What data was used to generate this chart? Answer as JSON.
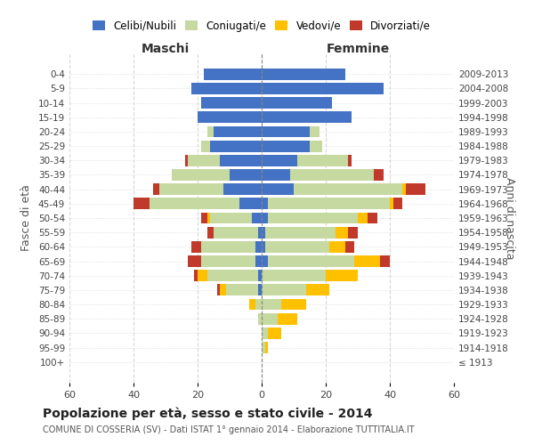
{
  "age_groups": [
    "100+",
    "95-99",
    "90-94",
    "85-89",
    "80-84",
    "75-79",
    "70-74",
    "65-69",
    "60-64",
    "55-59",
    "50-54",
    "45-49",
    "40-44",
    "35-39",
    "30-34",
    "25-29",
    "20-24",
    "15-19",
    "10-14",
    "5-9",
    "0-4"
  ],
  "birth_years": [
    "≤ 1913",
    "1914-1918",
    "1919-1923",
    "1924-1928",
    "1929-1933",
    "1934-1938",
    "1939-1943",
    "1944-1948",
    "1949-1953",
    "1954-1958",
    "1959-1963",
    "1964-1968",
    "1969-1973",
    "1974-1978",
    "1979-1983",
    "1984-1988",
    "1989-1993",
    "1994-1998",
    "1999-2003",
    "2004-2008",
    "2009-2013"
  ],
  "male": {
    "celibi": [
      0,
      0,
      0,
      0,
      0,
      1,
      1,
      2,
      2,
      1,
      3,
      7,
      12,
      10,
      13,
      16,
      15,
      20,
      19,
      22,
      18
    ],
    "coniugati": [
      0,
      0,
      0,
      1,
      2,
      10,
      16,
      17,
      17,
      14,
      13,
      28,
      20,
      18,
      10,
      3,
      2,
      0,
      0,
      0,
      0
    ],
    "vedovi": [
      0,
      0,
      0,
      0,
      2,
      2,
      3,
      0,
      0,
      0,
      1,
      0,
      0,
      0,
      0,
      0,
      0,
      0,
      0,
      0,
      0
    ],
    "divorziati": [
      0,
      0,
      0,
      0,
      0,
      1,
      1,
      4,
      3,
      2,
      2,
      5,
      2,
      0,
      1,
      0,
      0,
      0,
      0,
      0,
      0
    ]
  },
  "female": {
    "nubili": [
      0,
      0,
      0,
      0,
      0,
      0,
      0,
      2,
      1,
      1,
      2,
      2,
      10,
      9,
      11,
      15,
      15,
      28,
      22,
      38,
      26
    ],
    "coniugate": [
      0,
      1,
      2,
      5,
      6,
      14,
      20,
      27,
      20,
      22,
      28,
      38,
      34,
      26,
      16,
      4,
      3,
      0,
      0,
      0,
      0
    ],
    "vedove": [
      0,
      1,
      4,
      6,
      8,
      7,
      10,
      8,
      5,
      4,
      3,
      1,
      1,
      0,
      0,
      0,
      0,
      0,
      0,
      0,
      0
    ],
    "divorziate": [
      0,
      0,
      0,
      0,
      0,
      0,
      0,
      3,
      3,
      3,
      3,
      3,
      6,
      3,
      1,
      0,
      0,
      0,
      0,
      0,
      0
    ]
  },
  "colors": {
    "celibi": "#4472c4",
    "coniugati": "#c5d9a0",
    "vedovi": "#ffc000",
    "divorziati": "#c0392b"
  },
  "title": "Popolazione per età, sesso e stato civile - 2014",
  "subtitle": "COMUNE DI COSSERIA (SV) - Dati ISTAT 1° gennaio 2014 - Elaborazione TUTTITALIA.IT",
  "xlabel_left": "Maschi",
  "xlabel_right": "Femmine",
  "ylabel_left": "Fasce di età",
  "ylabel_right": "Anni di nascita",
  "xlim": 60,
  "bg_color": "#ffffff",
  "grid_color": "#cccccc",
  "bar_height": 0.8
}
